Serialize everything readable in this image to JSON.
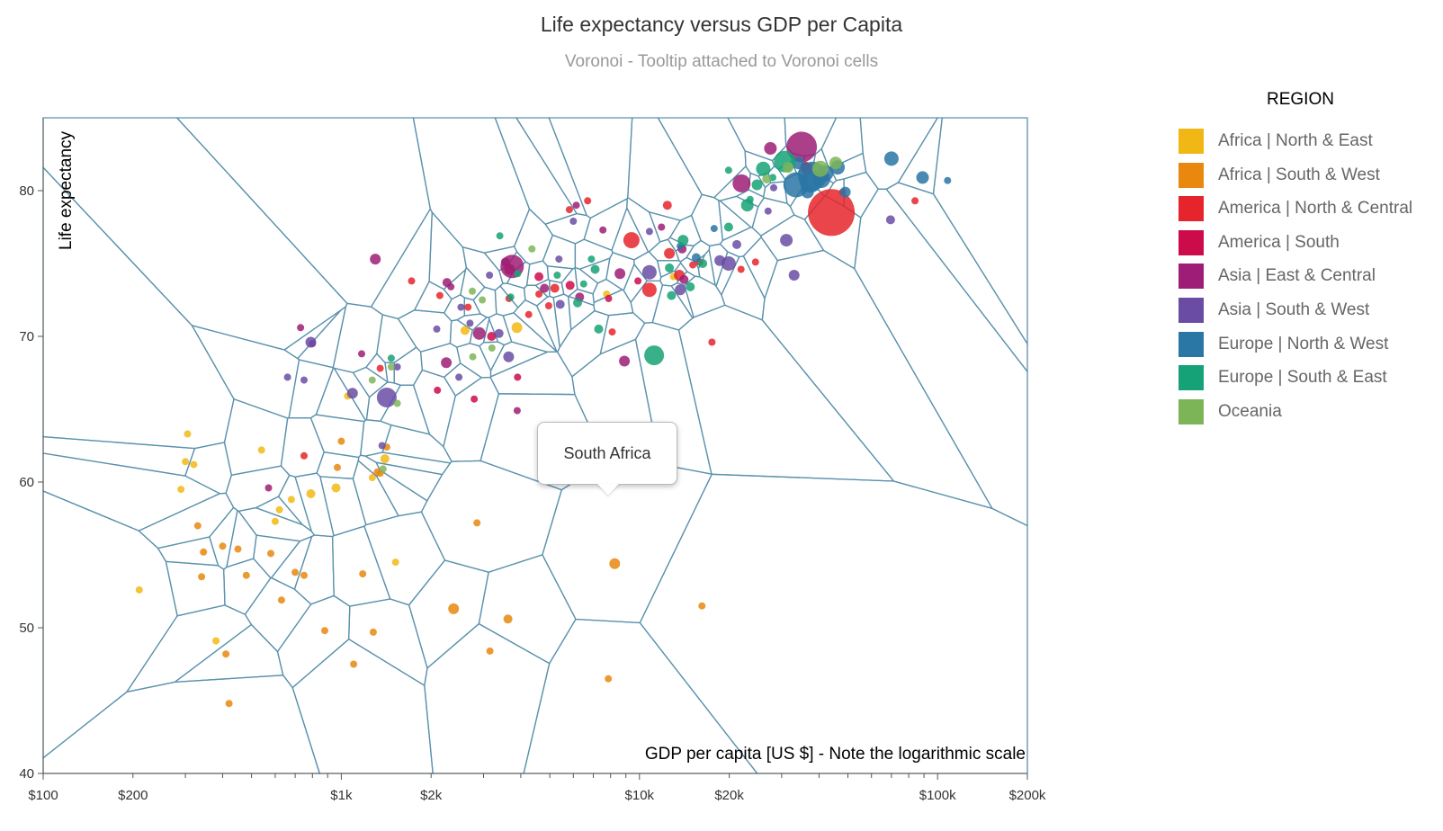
{
  "colors": {
    "Africa | North & East": "#f1b815",
    "Africa | South & West": "#e8880f",
    "America | North & Central": "#e5252b",
    "America | South": "#cc0b4b",
    "Asia | East & Central": "#9e1d76",
    "Asia | South & West": "#6a4ca4",
    "Europe | North & West": "#2a76a4",
    "Europe | South & East": "#15a276",
    "Oceania": "#7cb557"
  },
  "tooltip": {
    "text": "South Africa"
  },
  "chart_data": {
    "type": "scatter",
    "title": "Life expectancy versus GDP per Capita",
    "subtitle": "Voronoi - Tooltip attached to Voronoi cells",
    "xlabel": "GDP per capita [US $] - Note the logarithmic scale",
    "ylabel": "Life expectancy",
    "xscale": "log",
    "xlim": [
      100,
      200000
    ],
    "ylim": [
      40,
      85
    ],
    "grid": false,
    "legend_placement": "right",
    "legend_title": "REGION",
    "x_ticks": [
      {
        "value": 100,
        "label": "$100"
      },
      {
        "value": 200,
        "label": "$200"
      },
      {
        "value": 1000,
        "label": "$1k"
      },
      {
        "value": 2000,
        "label": "$2k"
      },
      {
        "value": 10000,
        "label": "$10k"
      },
      {
        "value": 20000,
        "label": "$20k"
      },
      {
        "value": 100000,
        "label": "$100k"
      },
      {
        "value": 200000,
        "label": "$200k"
      }
    ],
    "y_ticks": [
      {
        "value": 40,
        "label": "40"
      },
      {
        "value": 50,
        "label": "50"
      },
      {
        "value": 60,
        "label": "60"
      },
      {
        "value": 70,
        "label": "70"
      },
      {
        "value": 80,
        "label": "80"
      }
    ],
    "series": [
      {
        "name": "Africa | North & East",
        "points": [
          [
            210,
            52.6,
            4
          ],
          [
            305,
            63.3,
            4
          ],
          [
            300,
            61.4,
            4
          ],
          [
            320,
            61.2,
            4
          ],
          [
            290,
            59.5,
            4
          ],
          [
            540,
            62.2,
            4
          ],
          [
            620,
            58.1,
            4
          ],
          [
            600,
            57.3,
            4
          ],
          [
            380,
            49.1,
            4
          ],
          [
            1400,
            61.6,
            5
          ],
          [
            1520,
            54.5,
            4
          ],
          [
            960,
            59.6,
            5
          ],
          [
            790,
            59.2,
            5
          ],
          [
            1050,
            65.9,
            4
          ],
          [
            1270,
            60.3,
            4
          ],
          [
            2600,
            70.4,
            5
          ],
          [
            3880,
            70.6,
            6
          ],
          [
            7760,
            72.9,
            4
          ],
          [
            13000,
            74.1,
            4
          ],
          [
            680,
            58.8,
            4
          ]
        ]
      },
      {
        "name": "Africa | South & West",
        "points": [
          [
            330,
            57.0,
            4
          ],
          [
            340,
            53.5,
            4
          ],
          [
            345,
            55.2,
            4
          ],
          [
            450,
            55.4,
            4
          ],
          [
            400,
            55.6,
            4
          ],
          [
            410,
            48.2,
            4
          ],
          [
            420,
            44.8,
            4
          ],
          [
            480,
            53.6,
            4
          ],
          [
            580,
            55.1,
            4
          ],
          [
            630,
            51.9,
            4
          ],
          [
            700,
            53.8,
            4
          ],
          [
            750,
            53.6,
            4
          ],
          [
            880,
            49.8,
            4
          ],
          [
            1000,
            62.8,
            4
          ],
          [
            1100,
            47.5,
            4
          ],
          [
            1180,
            53.7,
            4
          ],
          [
            1280,
            49.7,
            4
          ],
          [
            1350,
            60.6,
            4
          ],
          [
            2380,
            51.3,
            6
          ],
          [
            2850,
            57.2,
            4
          ],
          [
            3150,
            48.4,
            4
          ],
          [
            3620,
            50.6,
            5
          ],
          [
            8260,
            54.4,
            6
          ],
          [
            7860,
            46.5,
            4
          ],
          [
            16200,
            51.5,
            4
          ],
          [
            970,
            61.0,
            4
          ],
          [
            1420,
            62.4,
            4
          ],
          [
            1320,
            60.7,
            4
          ]
        ]
      },
      {
        "name": "America | North & Central",
        "points": [
          [
            44000,
            78.5,
            26
          ],
          [
            9400,
            76.6,
            9
          ],
          [
            10800,
            73.2,
            8
          ],
          [
            12600,
            75.7,
            6
          ],
          [
            13600,
            74.2,
            6
          ],
          [
            15900,
            75.1,
            4
          ],
          [
            21900,
            74.6,
            4
          ],
          [
            24500,
            75.1,
            4
          ],
          [
            17500,
            69.6,
            4
          ],
          [
            8100,
            70.3,
            4
          ],
          [
            5200,
            73.3,
            5
          ],
          [
            4600,
            72.9,
            4
          ],
          [
            1720,
            73.8,
            4
          ],
          [
            2140,
            72.8,
            4
          ],
          [
            2660,
            72.0,
            4
          ],
          [
            3650,
            72.6,
            4
          ],
          [
            4960,
            72.1,
            4
          ],
          [
            5820,
            78.7,
            4
          ],
          [
            4250,
            71.5,
            4
          ],
          [
            15100,
            74.9,
            4
          ],
          [
            6700,
            79.3,
            4
          ],
          [
            12400,
            79.0,
            5
          ],
          [
            36000,
            81.7,
            5
          ],
          [
            84000,
            79.3,
            4
          ],
          [
            48000,
            79.9,
            4
          ],
          [
            750,
            61.8,
            4
          ],
          [
            1350,
            67.8,
            4
          ]
        ]
      },
      {
        "name": "America | South",
        "points": [
          [
            3670,
            74.6,
            6
          ],
          [
            3190,
            70.0,
            5
          ],
          [
            2790,
            65.7,
            4
          ],
          [
            3900,
            67.2,
            4
          ],
          [
            4600,
            74.1,
            5
          ],
          [
            2100,
            66.3,
            4
          ],
          [
            5850,
            73.5,
            5
          ],
          [
            7880,
            72.6,
            4
          ],
          [
            9880,
            73.8,
            4
          ]
        ]
      },
      {
        "name": "Asia | East & Central",
        "points": [
          [
            35000,
            83.0,
            17
          ],
          [
            22000,
            80.5,
            10
          ],
          [
            27500,
            82.9,
            7
          ],
          [
            36500,
            81.5,
            7
          ],
          [
            8900,
            68.3,
            6
          ],
          [
            13900,
            76.0,
            5
          ],
          [
            14100,
            73.9,
            5
          ],
          [
            3740,
            74.8,
            13
          ],
          [
            4800,
            73.3,
            5
          ],
          [
            6300,
            72.7,
            5
          ],
          [
            8600,
            74.3,
            6
          ],
          [
            1300,
            75.3,
            6
          ],
          [
            2900,
            70.2,
            7
          ],
          [
            2250,
            68.2,
            6
          ],
          [
            3550,
            75.1,
            5
          ],
          [
            6140,
            79.0,
            4
          ],
          [
            7540,
            77.3,
            4
          ],
          [
            11850,
            77.5,
            4
          ],
          [
            2260,
            73.7,
            5
          ],
          [
            2330,
            73.4,
            4
          ],
          [
            800,
            69.5,
            4
          ],
          [
            730,
            70.6,
            4
          ],
          [
            1170,
            68.8,
            4
          ],
          [
            3890,
            64.9,
            4
          ],
          [
            570,
            59.6,
            4
          ]
        ]
      },
      {
        "name": "Asia | South & West",
        "points": [
          [
            1420,
            65.8,
            11
          ],
          [
            1090,
            66.1,
            6
          ],
          [
            790,
            69.6,
            6
          ],
          [
            660,
            67.2,
            4
          ],
          [
            750,
            67.0,
            4
          ],
          [
            3640,
            68.6,
            6
          ],
          [
            10800,
            74.4,
            8
          ],
          [
            13700,
            73.2,
            6
          ],
          [
            18600,
            75.2,
            6
          ],
          [
            19900,
            75.0,
            8
          ],
          [
            21200,
            76.3,
            5
          ],
          [
            27000,
            78.6,
            4
          ],
          [
            28200,
            80.2,
            4
          ],
          [
            31100,
            76.6,
            7
          ],
          [
            33000,
            74.2,
            6
          ],
          [
            69500,
            78.0,
            5
          ],
          [
            1540,
            67.9,
            4
          ],
          [
            2090,
            70.5,
            4
          ],
          [
            2480,
            67.2,
            4
          ],
          [
            2520,
            72.0,
            4
          ],
          [
            3140,
            74.2,
            4
          ],
          [
            5370,
            75.3,
            4
          ],
          [
            5420,
            72.2,
            5
          ],
          [
            1370,
            62.5,
            4
          ],
          [
            2700,
            70.9,
            4
          ],
          [
            6000,
            77.9,
            4
          ],
          [
            10800,
            77.2,
            4
          ],
          [
            3380,
            70.2,
            5
          ]
        ]
      },
      {
        "name": "Europe | North & West",
        "points": [
          [
            38000,
            81.0,
            16
          ],
          [
            33500,
            80.4,
            14
          ],
          [
            37500,
            80.6,
            12
          ],
          [
            40700,
            80.8,
            10
          ],
          [
            42000,
            81.2,
            9
          ],
          [
            46200,
            81.6,
            8
          ],
          [
            49000,
            79.9,
            6
          ],
          [
            34100,
            81.9,
            7
          ],
          [
            36600,
            79.9,
            7
          ],
          [
            70000,
            82.2,
            8
          ],
          [
            89000,
            80.9,
            7
          ],
          [
            108000,
            80.7,
            4
          ],
          [
            15500,
            75.4,
            5
          ],
          [
            13700,
            76.2,
            4
          ],
          [
            17800,
            77.4,
            4
          ]
        ]
      },
      {
        "name": "Europe | South & East",
        "points": [
          [
            30700,
            82.0,
            12
          ],
          [
            26000,
            81.5,
            8
          ],
          [
            28000,
            80.9,
            4
          ],
          [
            24800,
            80.4,
            6
          ],
          [
            23000,
            79.0,
            7
          ],
          [
            19900,
            77.5,
            5
          ],
          [
            16300,
            75.0,
            5
          ],
          [
            14800,
            73.4,
            5
          ],
          [
            12800,
            72.8,
            5
          ],
          [
            11200,
            68.7,
            11
          ],
          [
            14000,
            76.6,
            6
          ],
          [
            12600,
            74.7,
            5
          ],
          [
            7100,
            74.6,
            5
          ],
          [
            5300,
            74.2,
            4
          ],
          [
            6200,
            72.3,
            5
          ],
          [
            3700,
            72.7,
            4
          ],
          [
            3400,
            76.9,
            4
          ],
          [
            7300,
            70.5,
            5
          ],
          [
            6900,
            75.3,
            4
          ],
          [
            23500,
            79.4,
            4
          ],
          [
            19900,
            81.4,
            4
          ],
          [
            1470,
            68.5,
            4
          ],
          [
            3900,
            74.3,
            4
          ],
          [
            6500,
            73.6,
            4
          ]
        ]
      },
      {
        "name": "Oceania",
        "points": [
          [
            31500,
            81.6,
            6
          ],
          [
            40400,
            81.5,
            9
          ],
          [
            45500,
            81.9,
            7
          ],
          [
            26700,
            80.8,
            5
          ],
          [
            2970,
            72.5,
            4
          ],
          [
            2760,
            68.6,
            4
          ],
          [
            3200,
            69.2,
            4
          ],
          [
            1470,
            67.9,
            4
          ],
          [
            1270,
            67.0,
            4
          ],
          [
            4360,
            76.0,
            4
          ],
          [
            1540,
            65.4,
            4
          ],
          [
            1380,
            60.9,
            4
          ],
          [
            2750,
            73.1,
            4
          ]
        ]
      }
    ]
  }
}
